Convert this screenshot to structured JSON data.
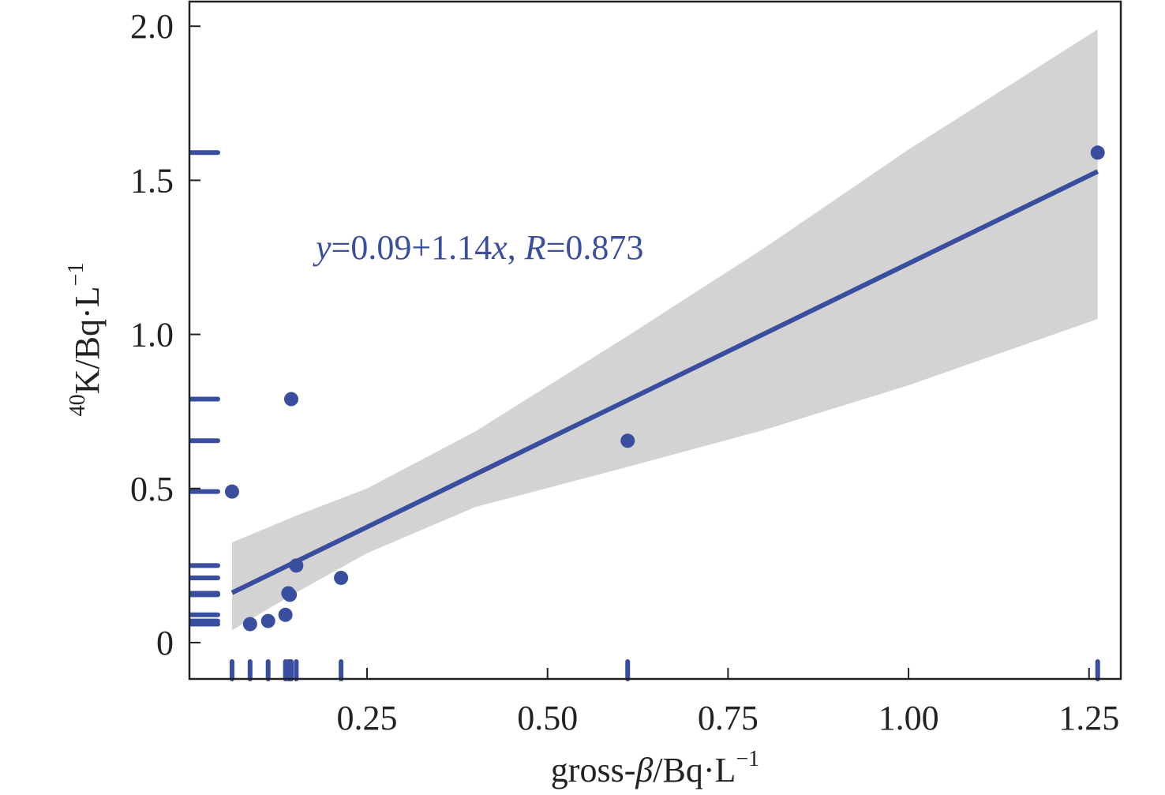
{
  "chart_data": {
    "type": "scatter",
    "title": "",
    "xlabel": {
      "prefix": "gross-",
      "symbol": "β",
      "unit": "/Bq·L",
      "sup": "−1"
    },
    "ylabel": {
      "sup_pre": "40",
      "main": "K/Bq·L",
      "sup": "−1"
    },
    "xlim": [
      0.004,
      1.294
    ],
    "ylim": [
      -0.118,
      2.08
    ],
    "x_ticks": [
      {
        "value": 0.25,
        "label": "0.25"
      },
      {
        "value": 0.5,
        "label": "0.50"
      },
      {
        "value": 0.75,
        "label": "0.75"
      },
      {
        "value": 1.0,
        "label": "1.00"
      },
      {
        "value": 1.25,
        "label": "1.25"
      }
    ],
    "y_ticks": [
      {
        "value": 0,
        "label": "0"
      },
      {
        "value": 0.5,
        "label": "0.5"
      },
      {
        "value": 1.0,
        "label": "1.0"
      },
      {
        "value": 1.5,
        "label": "1.5"
      },
      {
        "value": 2.0,
        "label": "2.0"
      }
    ],
    "grid": false,
    "points": [
      {
        "x": 0.063,
        "y": 0.49
      },
      {
        "x": 0.088,
        "y": 0.06
      },
      {
        "x": 0.113,
        "y": 0.07
      },
      {
        "x": 0.137,
        "y": 0.09
      },
      {
        "x": 0.141,
        "y": 0.16
      },
      {
        "x": 0.143,
        "y": 0.155
      },
      {
        "x": 0.145,
        "y": 0.79
      },
      {
        "x": 0.152,
        "y": 0.25
      },
      {
        "x": 0.214,
        "y": 0.21
      },
      {
        "x": 0.611,
        "y": 0.655
      },
      {
        "x": 1.262,
        "y": 1.59
      }
    ],
    "regression": {
      "equation": {
        "y": "y",
        "mid": "=0.09+1.14",
        "x": "x",
        "sep": ", ",
        "R": "R",
        "rest": "=0.873"
      },
      "intercept": 0.09,
      "slope": 1.14,
      "x_range": [
        0.063,
        1.262
      ],
      "confidence_band": [
        {
          "x": 0.063,
          "lower": 0.04,
          "upper": 0.325
        },
        {
          "x": 0.15,
          "lower": 0.16,
          "upper": 0.41
        },
        {
          "x": 0.25,
          "lower": 0.29,
          "upper": 0.5
        },
        {
          "x": 0.4,
          "lower": 0.44,
          "upper": 0.685
        },
        {
          "x": 0.611,
          "lower": 0.57,
          "upper": 0.995
        },
        {
          "x": 0.8,
          "lower": 0.69,
          "upper": 1.28
        },
        {
          "x": 1.0,
          "lower": 0.835,
          "upper": 1.6
        },
        {
          "x": 1.262,
          "lower": 1.05,
          "upper": 1.99
        }
      ]
    },
    "rug_x": [
      0.063,
      0.088,
      0.113,
      0.137,
      0.141,
      0.143,
      0.145,
      0.152,
      0.214,
      0.611,
      1.262
    ],
    "rug_y": [
      1.59,
      0.79,
      0.655,
      0.49,
      0.25,
      0.21,
      0.16,
      0.155,
      0.09,
      0.07,
      0.06
    ],
    "colors": {
      "series": "#3a4ea0",
      "band": "#d3d3d3",
      "axis": "#222222"
    }
  }
}
